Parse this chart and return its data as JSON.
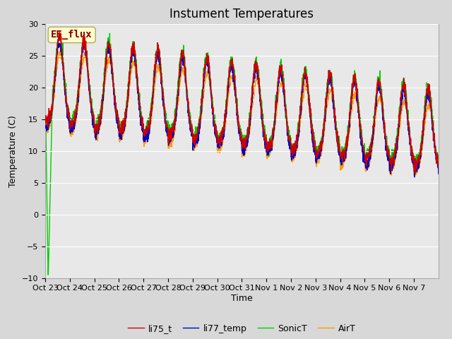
{
  "title": "Instument Temperatures",
  "ylabel": "Temperature (C)",
  "xlabel": "Time",
  "ylim": [
    -10,
    30
  ],
  "yticks": [
    -10,
    -5,
    0,
    5,
    10,
    15,
    20,
    25,
    30
  ],
  "xtick_labels": [
    "Oct 23",
    "Oct 24",
    "Oct 25",
    "Oct 26",
    "Oct 27",
    "Oct 28",
    "Oct 29",
    "Oct 30",
    "Oct 31",
    "Nov 1",
    "Nov 2",
    "Nov 3",
    "Nov 4",
    "Nov 5",
    "Nov 6",
    "Nov 7"
  ],
  "line_colors": {
    "li75_t": "#cc0000",
    "li77_temp": "#0000cc",
    "SonicT": "#00cc00",
    "AirT": "#ff9900"
  },
  "legend_labels": [
    "li75_t",
    "li77_temp",
    "SonicT",
    "AirT"
  ],
  "annotation_text": "EE_flux",
  "annotation_color": "#880000",
  "annotation_bg": "#ffffcc",
  "background_color": "#e8e8e8",
  "title_fontsize": 12,
  "axis_label_fontsize": 9,
  "tick_fontsize": 8,
  "legend_fontsize": 9
}
